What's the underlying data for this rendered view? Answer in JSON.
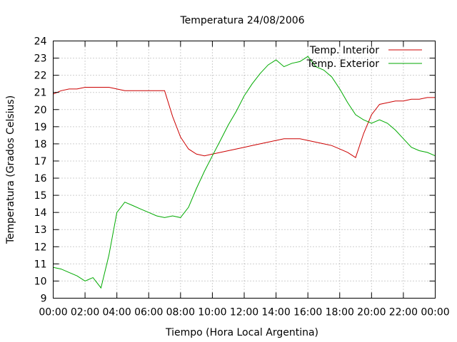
{
  "chart_data": {
    "type": "line",
    "title": "Temperatura 24/08/2006",
    "xlabel": "Tiempo (Hora Local Argentina)",
    "ylabel": "Temperatura (Grados Celsius)",
    "xlim": [
      "00:00",
      "00:00 (+1 día)"
    ],
    "ylim": [
      9,
      24
    ],
    "x_tick_labels": [
      "00:00",
      "02:00",
      "04:00",
      "06:00",
      "08:00",
      "10:00",
      "12:00",
      "14:00",
      "16:00",
      "18:00",
      "20:00",
      "22:00",
      "00:00"
    ],
    "y_ticks": [
      9,
      10,
      11,
      12,
      13,
      14,
      15,
      16,
      17,
      18,
      19,
      20,
      21,
      22,
      23,
      24
    ],
    "grid": true,
    "legend_position": "top-right",
    "x": [
      "00:00",
      "00:30",
      "01:00",
      "01:30",
      "02:00",
      "02:30",
      "03:00",
      "03:30",
      "04:00",
      "04:30",
      "05:00",
      "05:30",
      "06:00",
      "06:30",
      "07:00",
      "07:30",
      "08:00",
      "08:30",
      "09:00",
      "09:30",
      "10:00",
      "10:30",
      "11:00",
      "11:30",
      "12:00",
      "12:30",
      "13:00",
      "13:30",
      "14:00",
      "14:30",
      "15:00",
      "15:30",
      "16:00",
      "16:30",
      "17:00",
      "17:30",
      "18:00",
      "18:30",
      "19:00",
      "19:30",
      "20:00",
      "20:30",
      "21:00",
      "21:30",
      "22:00",
      "22:30",
      "23:00",
      "23:30",
      "24:00"
    ],
    "series": [
      {
        "name": "Temp. Interior",
        "color": "#cc0000",
        "values": [
          20.9,
          21.1,
          21.2,
          21.2,
          21.3,
          21.3,
          21.3,
          21.3,
          21.2,
          21.1,
          21.1,
          21.1,
          21.1,
          21.1,
          21.1,
          19.6,
          18.4,
          17.7,
          17.4,
          17.3,
          17.4,
          17.5,
          17.6,
          17.7,
          17.8,
          17.9,
          18.0,
          18.1,
          18.2,
          18.3,
          18.3,
          18.3,
          18.2,
          18.1,
          18.0,
          17.9,
          17.7,
          17.5,
          17.2,
          18.6,
          19.7,
          20.3,
          20.4,
          20.5,
          20.5,
          20.6,
          20.6,
          20.7,
          20.7
        ]
      },
      {
        "name": "Temp. Exterior",
        "color": "#00aa00",
        "values": [
          10.8,
          10.7,
          10.5,
          10.3,
          10.0,
          10.2,
          9.6,
          11.5,
          14.0,
          14.6,
          14.4,
          14.2,
          14.0,
          13.8,
          13.7,
          13.8,
          13.7,
          14.3,
          15.4,
          16.4,
          17.3,
          18.2,
          19.1,
          19.9,
          20.8,
          21.5,
          22.1,
          22.6,
          22.9,
          22.5,
          22.7,
          22.8,
          23.1,
          22.5,
          22.3,
          21.9,
          21.2,
          20.4,
          19.7,
          19.4,
          19.2,
          19.4,
          19.2,
          18.8,
          18.3,
          17.8,
          17.6,
          17.5,
          17.3
        ]
      }
    ]
  }
}
